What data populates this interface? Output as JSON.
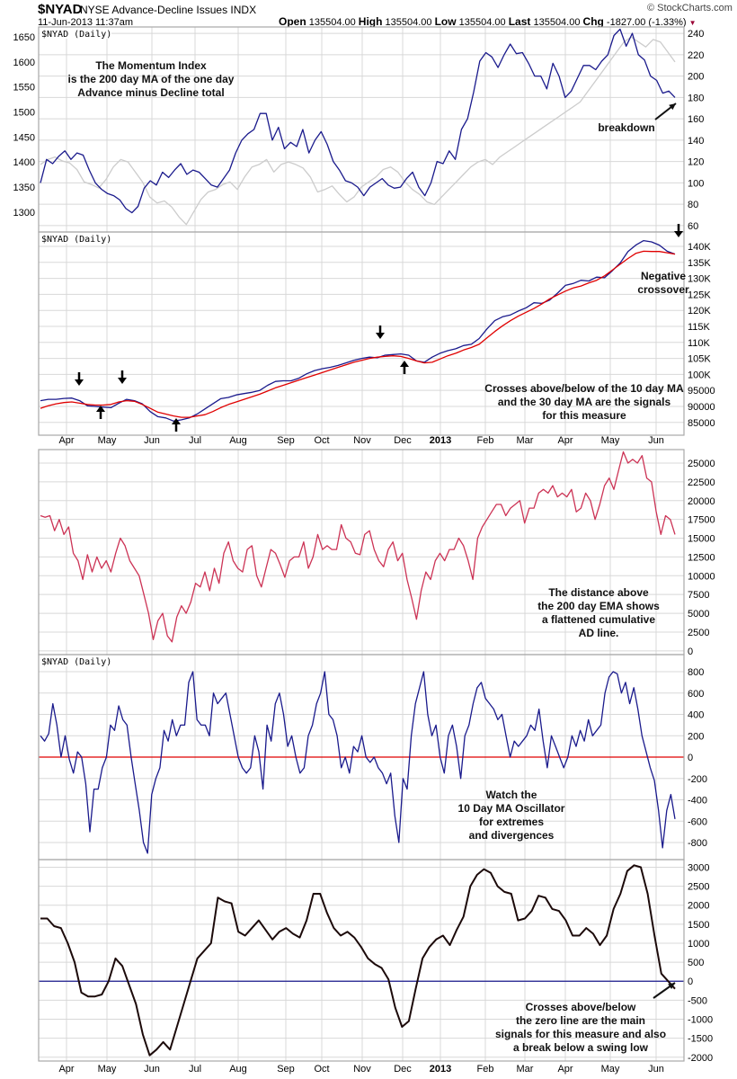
{
  "header": {
    "symbol": "$NYAD",
    "name": "NYSE Advance-Decline Issues  INDX",
    "date": "11-Jun-2013 11:37am",
    "watermark": "© StockCharts.com",
    "open_label": "Open",
    "open": "135504.00",
    "high_label": "High",
    "high": "135504.00",
    "low_label": "Low",
    "low": "135504.00",
    "last_label": "Last",
    "last": "135504.00",
    "chg_label": "Chg",
    "chg": "-1827.00 (-1.33%)",
    "down_color": "#990033"
  },
  "x_axis": {
    "months": [
      "Apr",
      "May",
      "Jun",
      "Jul",
      "Aug",
      "Sep",
      "Oct",
      "Nov",
      "Dec",
      "2013",
      "Feb",
      "Mar",
      "Apr",
      "May",
      "Jun"
    ],
    "bold_index": 9
  },
  "chart_data": [
    {
      "type": "line",
      "panel_title": "$NYAD (Daily)",
      "annotation": [
        "The Momentum Index",
        "is the 200 day MA of the one day",
        "Advance minus Decline total"
      ],
      "callout": "breakdown",
      "left_ylim": [
        1260,
        1670
      ],
      "left_ticks": [
        1300,
        1350,
        1400,
        1450,
        1500,
        1550,
        1600,
        1650
      ],
      "right_ylim": [
        54,
        246
      ],
      "right_ticks": [
        60,
        80,
        100,
        120,
        140,
        160,
        180,
        200,
        220,
        240
      ],
      "series": [
        {
          "name": "price (left axis)",
          "color": "#cccccc",
          "axis": "left",
          "values": [
            1395,
            1405,
            1410,
            1402,
            1398,
            1385,
            1360,
            1355,
            1348,
            1365,
            1390,
            1405,
            1400,
            1380,
            1360,
            1330,
            1318,
            1322,
            1310,
            1290,
            1275,
            1300,
            1325,
            1340,
            1345,
            1355,
            1360,
            1345,
            1370,
            1390,
            1395,
            1405,
            1380,
            1395,
            1400,
            1395,
            1388,
            1370,
            1340,
            1345,
            1352,
            1335,
            1320,
            1330,
            1350,
            1360,
            1370,
            1385,
            1390,
            1380,
            1360,
            1345,
            1335,
            1320,
            1315,
            1330,
            1345,
            1360,
            1375,
            1390,
            1400,
            1405,
            1395,
            1410,
            1420,
            1430,
            1440,
            1450,
            1460,
            1470,
            1480,
            1490,
            1500,
            1510,
            1520,
            1540,
            1560,
            1580,
            1600,
            1620,
            1640,
            1650,
            1640,
            1630,
            1645,
            1640,
            1620,
            1600
          ]
        },
        {
          "name": "Momentum Index (right axis)",
          "color": "#1a1a8c",
          "axis": "right",
          "values": [
            100,
            122,
            118,
            125,
            130,
            122,
            128,
            126,
            112,
            100,
            94,
            90,
            88,
            84,
            76,
            72,
            78,
            95,
            102,
            98,
            110,
            105,
            112,
            118,
            108,
            112,
            110,
            104,
            98,
            96,
            104,
            112,
            128,
            140,
            146,
            150,
            165,
            165,
            140,
            152,
            132,
            138,
            134,
            150,
            128,
            140,
            148,
            136,
            120,
            112,
            102,
            100,
            96,
            88,
            96,
            100,
            104,
            98,
            95,
            96,
            104,
            110,
            96,
            88,
            100,
            120,
            118,
            130,
            122,
            150,
            160,
            185,
            214,
            222,
            218,
            208,
            220,
            230,
            221,
            222,
            212,
            200,
            200,
            188,
            212,
            200,
            180,
            186,
            198,
            210,
            210,
            206,
            214,
            220,
            238,
            244,
            228,
            240,
            220,
            215,
            200,
            196,
            184,
            186,
            180
          ]
        }
      ]
    },
    {
      "type": "line",
      "panel_title": "$NYAD (Daily)",
      "annotation": [
        "Crosses above/below of the 10 day MA",
        "and the 30 day MA are the signals",
        "for this measure"
      ],
      "callout": [
        "Negative",
        "crossover"
      ],
      "ylim": [
        81000,
        144500
      ],
      "ticks": [
        85000,
        90000,
        95000,
        "100K",
        "105K",
        "110K",
        "115K",
        "120K",
        "125K",
        "130K",
        "135K",
        "140K"
      ],
      "tick_values": [
        85000,
        90000,
        95000,
        100000,
        105000,
        110000,
        115000,
        120000,
        125000,
        130000,
        135000,
        140000
      ],
      "series": [
        {
          "name": "10 day MA",
          "color": "#1a1a8c",
          "values": [
            91800,
            92200,
            92200,
            92500,
            92600,
            91800,
            90200,
            90000,
            89800,
            89600,
            91000,
            92200,
            91800,
            90800,
            88400,
            86800,
            86400,
            85400,
            85800,
            86400,
            87600,
            89200,
            90800,
            92400,
            92800,
            93600,
            94000,
            94400,
            95000,
            96600,
            97800,
            98000,
            98000,
            98800,
            100200,
            101200,
            101800,
            102200,
            102800,
            103600,
            104400,
            105000,
            105400,
            105200,
            106000,
            106200,
            106400,
            106000,
            104200,
            103800,
            105400,
            106600,
            107400,
            108000,
            109000,
            109400,
            111200,
            114200,
            116800,
            118000,
            118600,
            119800,
            120800,
            122400,
            122200,
            123200,
            125400,
            127800,
            128400,
            129400,
            129200,
            130400,
            130200,
            132400,
            134800,
            138400,
            140400,
            141800,
            141400,
            140400,
            138500,
            137600
          ]
        },
        {
          "name": "30 day MA",
          "color": "#e00000",
          "values": [
            89400,
            90200,
            90800,
            91200,
            91400,
            91000,
            90600,
            90400,
            90400,
            90600,
            91400,
            91800,
            91600,
            90600,
            89400,
            88200,
            87600,
            87000,
            86600,
            86600,
            87000,
            87400,
            88400,
            89600,
            90600,
            91400,
            92200,
            93000,
            93800,
            94800,
            95800,
            96600,
            97400,
            98200,
            99000,
            99800,
            100600,
            101400,
            102200,
            103000,
            103800,
            104400,
            105000,
            105400,
            105600,
            105800,
            105600,
            105000,
            104200,
            103600,
            103800,
            104800,
            105800,
            106600,
            107600,
            108400,
            109400,
            111400,
            113400,
            115200,
            116800,
            118200,
            119400,
            120600,
            122000,
            123600,
            124800,
            126000,
            127000,
            127600,
            128600,
            129400,
            130800,
            132600,
            134400,
            136200,
            137800,
            138500,
            138400,
            138400,
            138000,
            137600
          ]
        }
      ],
      "arrows": [
        {
          "dir": "down",
          "month_pos": 0.5
        },
        {
          "dir": "up",
          "month_pos": 1.0
        },
        {
          "dir": "down",
          "month_pos": 1.3
        },
        {
          "dir": "up",
          "month_pos": 2.5
        },
        {
          "dir": "down",
          "month_pos": 7.3
        },
        {
          "dir": "up",
          "month_pos": 7.8
        },
        {
          "dir": "down",
          "month_pos": 14.35
        }
      ]
    },
    {
      "type": "line",
      "panel_title": "",
      "annotation": [
        "The distance above",
        "the 200 day EMA shows",
        "a flattened cumulative",
        "AD line."
      ],
      "ylim": [
        -500,
        26800
      ],
      "ticks": [
        0,
        2500,
        5000,
        7500,
        10000,
        12500,
        15000,
        17500,
        20000,
        22500,
        25000
      ],
      "series": [
        {
          "name": "distance above 200 day EMA",
          "color": "#cc3355",
          "values": [
            18000,
            17800,
            18000,
            16000,
            17500,
            15500,
            16500,
            13000,
            12000,
            9500,
            12800,
            10500,
            12500,
            11000,
            12000,
            10500,
            13000,
            15000,
            14000,
            12000,
            11000,
            10000,
            7500,
            5000,
            1500,
            4000,
            5000,
            2000,
            1200,
            4500,
            6000,
            5000,
            6500,
            9000,
            8500,
            10500,
            8000,
            11000,
            9000,
            13000,
            14500,
            12000,
            11000,
            10500,
            13500,
            14000,
            10000,
            8500,
            11000,
            13500,
            13000,
            11500,
            9800,
            12000,
            12500,
            12500,
            14500,
            11000,
            12500,
            15500,
            13500,
            14000,
            13500,
            13500,
            16800,
            15000,
            14500,
            13000,
            12800,
            15500,
            16000,
            13500,
            12000,
            11200,
            13500,
            14500,
            12000,
            13000,
            9500,
            7000,
            4200,
            8000,
            10500,
            9500,
            12000,
            13000,
            12000,
            13500,
            13500,
            15000,
            14000,
            12000,
            9500,
            15000,
            16500,
            17500,
            18500,
            19500,
            19500,
            18000,
            19000,
            19500,
            20000,
            17000,
            19000,
            19000,
            21000,
            21500,
            21000,
            22000,
            20500,
            21000,
            20500,
            21500,
            18500,
            19000,
            21000,
            20000,
            17500,
            19500,
            22000,
            23000,
            21500,
            24000,
            26500,
            25000,
            25500,
            25000,
            26000,
            23000,
            22500,
            18500,
            15500,
            18000,
            17500,
            15500
          ]
        }
      ]
    },
    {
      "type": "line",
      "panel_title": "$NYAD (Daily)",
      "annotation": [
        "Watch the",
        "10 Day MA Oscillator",
        "for extremes",
        "and divergences"
      ],
      "ylim": [
        -960,
        960
      ],
      "ticks": [
        -800,
        -600,
        -400,
        -200,
        0,
        200,
        400,
        600,
        800
      ],
      "zero_line_color": "#e00000",
      "series": [
        {
          "name": "10 Day MA Oscillator",
          "color": "#1a1a8c",
          "values": [
            200,
            150,
            220,
            500,
            300,
            0,
            200,
            -20,
            -150,
            50,
            0,
            -250,
            -700,
            -300,
            -300,
            -100,
            0,
            300,
            250,
            480,
            350,
            300,
            0,
            -250,
            -500,
            -800,
            -900,
            -350,
            -200,
            -100,
            250,
            150,
            350,
            200,
            300,
            300,
            700,
            800,
            350,
            300,
            300,
            200,
            600,
            500,
            550,
            600,
            400,
            200,
            0,
            -100,
            -150,
            -100,
            200,
            50,
            -300,
            300,
            150,
            500,
            600,
            400,
            100,
            200,
            0,
            -150,
            -100,
            200,
            300,
            500,
            600,
            800,
            400,
            350,
            200,
            -100,
            0,
            -150,
            100,
            50,
            200,
            0,
            -50,
            0,
            -100,
            -150,
            -250,
            -150,
            -550,
            -800,
            -200,
            -300,
            200,
            500,
            650,
            800,
            400,
            200,
            300,
            0,
            -150,
            200,
            300,
            100,
            -200,
            200,
            300,
            500,
            650,
            700,
            550,
            500,
            450,
            350,
            400,
            200,
            0,
            150,
            100,
            150,
            200,
            300,
            250,
            450,
            150,
            -100,
            200,
            100,
            0,
            -100,
            0,
            200,
            100,
            250,
            150,
            350,
            200,
            250,
            300,
            600,
            750,
            800,
            780,
            600,
            700,
            500,
            650,
            450,
            200,
            50,
            -100,
            -220,
            -500,
            -850,
            -500,
            -350,
            -580
          ]
        }
      ]
    },
    {
      "type": "line",
      "panel_title": "",
      "annotation": [
        "Crosses above/below",
        "the zero line are the main",
        "signals for this measure and also",
        "a break below a swing low"
      ],
      "ylim": [
        -2100,
        3200
      ],
      "ticks": [
        -2000,
        -1500,
        -1000,
        -500,
        0,
        500,
        1000,
        1500,
        2000,
        2500,
        3000
      ],
      "zero_line_color": "#1a1a8c",
      "series": [
        {
          "name": "200 day MA of one day Advance minus Decline",
          "color": "#1c0a0a",
          "values": [
            1650,
            1650,
            1450,
            1400,
            1000,
            500,
            -300,
            -400,
            -400,
            -350,
            0,
            600,
            400,
            -100,
            -600,
            -1400,
            -1950,
            -1800,
            -1600,
            -1800,
            -1200,
            -600,
            0,
            600,
            800,
            1000,
            2200,
            2100,
            2050,
            1300,
            1200,
            1400,
            1600,
            1350,
            1100,
            1300,
            1400,
            1250,
            1150,
            1600,
            2300,
            2300,
            1800,
            1400,
            1200,
            1300,
            1150,
            900,
            600,
            450,
            350,
            50,
            -700,
            -1200,
            -1050,
            -200,
            600,
            900,
            1100,
            1200,
            950,
            1350,
            1700,
            2500,
            2800,
            2950,
            2850,
            2500,
            2350,
            2300,
            1600,
            1650,
            1850,
            2250,
            2200,
            1900,
            1850,
            1600,
            1200,
            1200,
            1400,
            1250,
            950,
            1200,
            1900,
            2300,
            2900,
            3050,
            3000,
            2300,
            1200,
            200,
            0,
            -200
          ]
        }
      ]
    }
  ]
}
